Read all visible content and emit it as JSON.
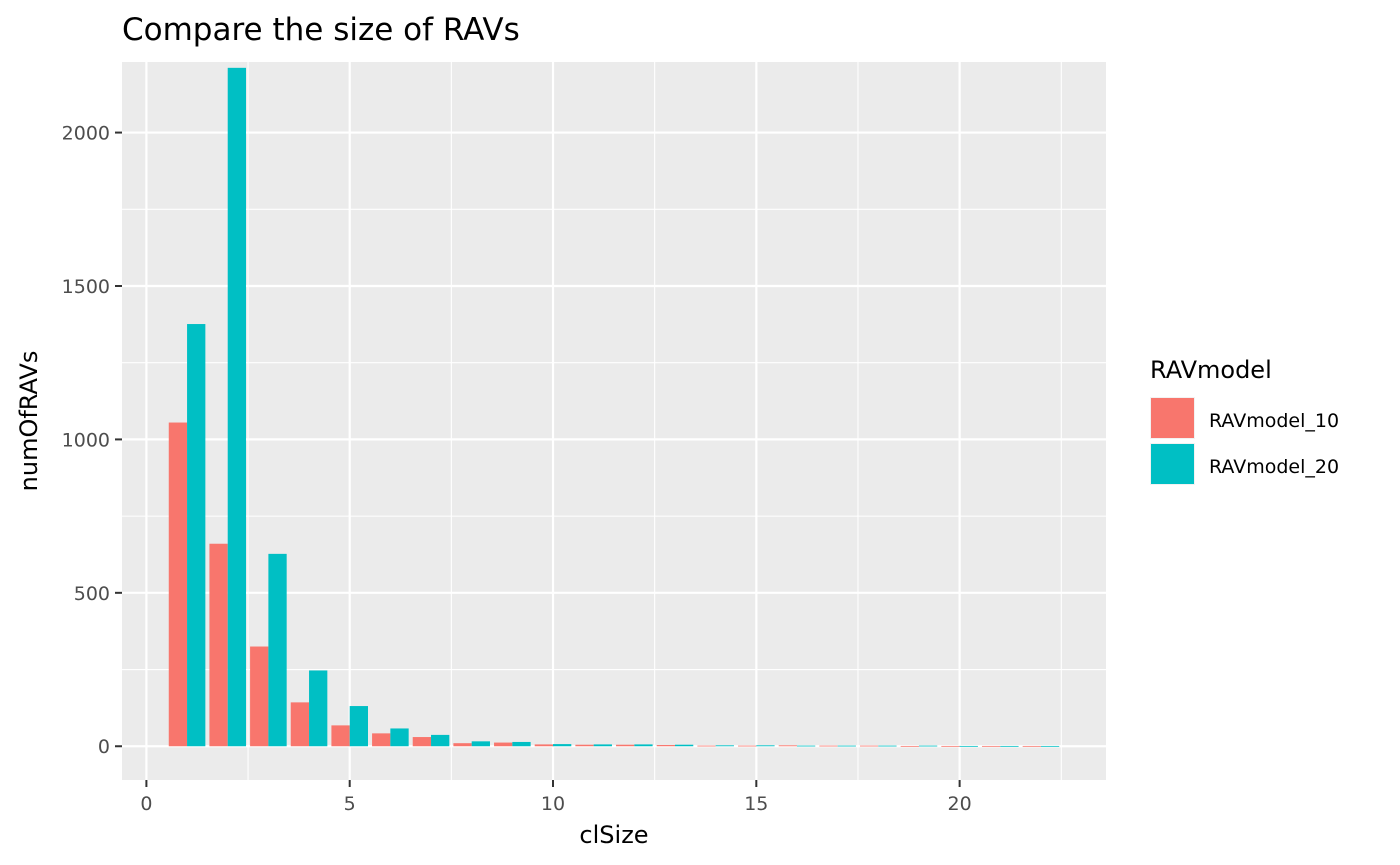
{
  "chart_data": {
    "type": "bar",
    "title": "Compare the size of RAVs",
    "xlabel": "clSize",
    "ylabel": "numOfRAVs",
    "x": [
      1,
      2,
      3,
      4,
      5,
      6,
      7,
      8,
      9,
      10,
      11,
      12,
      13,
      14,
      15,
      16,
      17,
      18,
      19,
      20,
      21,
      22
    ],
    "series": [
      {
        "name": "RAVmodel_10",
        "color": "#F8766D",
        "values": [
          1055,
          660,
          325,
          143,
          68,
          42,
          30,
          10,
          12,
          6,
          5,
          5,
          4,
          2,
          2,
          3,
          2,
          2,
          1,
          1,
          1,
          1
        ]
      },
      {
        "name": "RAVmodel_20",
        "color": "#00BFC4",
        "values": [
          1376,
          2211,
          627,
          247,
          131,
          58,
          37,
          16,
          14,
          7,
          6,
          6,
          5,
          3,
          3,
          2,
          2,
          2,
          2,
          1,
          1,
          1
        ]
      }
    ],
    "xlim": [
      -0.6,
      23.6
    ],
    "ylim": [
      -110,
      2230
    ],
    "xticks": [
      0,
      5,
      10,
      15,
      20
    ],
    "yticks": [
      0,
      500,
      1000,
      1500,
      2000
    ],
    "grid": true,
    "legend": {
      "title": "RAVmodel",
      "position": "right"
    },
    "colors": {
      "panel": "#EBEBEB",
      "grid": "#FFFFFF",
      "tick_text": "#4D4D4D"
    }
  }
}
